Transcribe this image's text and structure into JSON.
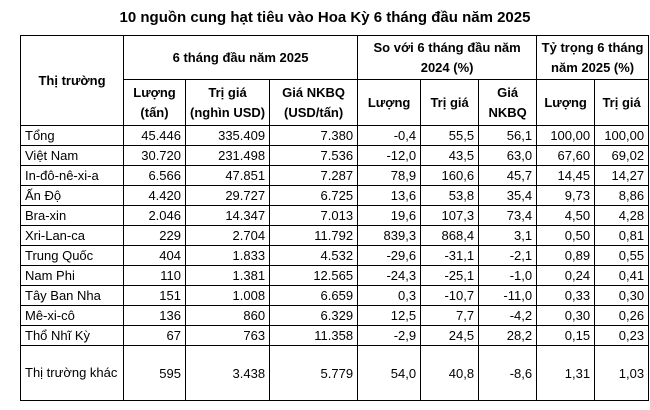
{
  "title": "10 nguồn cung hạt tiêu vào Hoa Kỳ 6 tháng đầu năm 2025",
  "headers": {
    "market": "Thị trường",
    "group1": "6 tháng đầu năm 2025",
    "group2_line1": "So với 6 tháng đầu năm",
    "group2_line2": "2024 (%)",
    "group3_line1": "Tỷ trọng 6 tháng",
    "group3_line2": "năm 2025 (%)",
    "volume_line1": "Lượng",
    "volume_line2": "(tấn)",
    "value_line1": "Trị giá",
    "value_line2": "(nghìn USD)",
    "price_line1": "Giá NKBQ",
    "price_line2": "(USD/tấn)",
    "cmp_volume": "Lượng",
    "cmp_value": "Trị giá",
    "cmp_price_line1": "Giá",
    "cmp_price_line2": "NKBQ",
    "share_volume": "Lượng",
    "share_value": "Trị giá"
  },
  "rows": [
    [
      "Tổng",
      "45.446",
      "335.409",
      "7.380",
      "-0,4",
      "55,5",
      "56,1",
      "100,00",
      "100,00"
    ],
    [
      "Việt Nam",
      "30.720",
      "231.498",
      "7.536",
      "-12,0",
      "43,5",
      "63,0",
      "67,60",
      "69,02"
    ],
    [
      "In-đô-nê-xi-a",
      "6.566",
      "47.851",
      "7.287",
      "78,9",
      "160,6",
      "45,7",
      "14,45",
      "14,27"
    ],
    [
      "Ấn Độ",
      "4.420",
      "29.727",
      "6.725",
      "13,6",
      "53,8",
      "35,4",
      "9,73",
      "8,86"
    ],
    [
      "Bra-xin",
      "2.046",
      "14.347",
      "7.013",
      "19,6",
      "107,3",
      "73,4",
      "4,50",
      "4,28"
    ],
    [
      "Xri-Lan-ca",
      "229",
      "2.704",
      "11.792",
      "839,3",
      "868,4",
      "3,1",
      "0,50",
      "0,81"
    ],
    [
      "Trung Quốc",
      "404",
      "1.833",
      "4.532",
      "-29,6",
      "-31,1",
      "-2,1",
      "0,89",
      "0,55"
    ],
    [
      "Nam Phi",
      "110",
      "1.381",
      "12.565",
      "-24,3",
      "-25,1",
      "-1,0",
      "0,24",
      "0,41"
    ],
    [
      "Tây Ban Nha",
      "151",
      "1.008",
      "6.659",
      "0,3",
      "-10,7",
      "-11,0",
      "0,33",
      "0,30"
    ],
    [
      "Mê-xi-cô",
      "136",
      "860",
      "6.329",
      "12,5",
      "7,7",
      "-4,2",
      "0,30",
      "0,26"
    ],
    [
      "Thổ Nhĩ Kỳ",
      "67",
      "763",
      "11.358",
      "-2,9",
      "24,5",
      "28,2",
      "0,15",
      "0,23"
    ],
    [
      "Thị trường khác",
      "595",
      "3.438",
      "5.779",
      "54,0",
      "40,8",
      "-8,6",
      "1,31",
      "1,03"
    ]
  ]
}
